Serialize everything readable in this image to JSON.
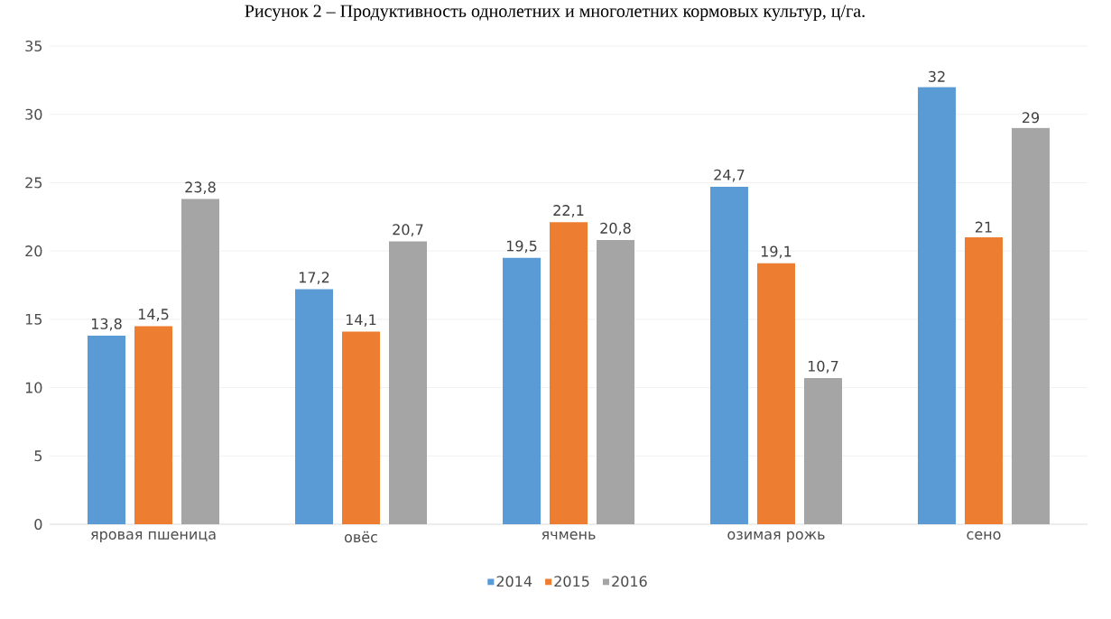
{
  "chart_data": {
    "type": "bar",
    "title": "Рисунок 2 – Продуктивность однолетних и многолетних кормовых культур, ц/га.",
    "categories": [
      "яровая пшеница",
      "овёс",
      "ячмень",
      "озимая рожь",
      "сено"
    ],
    "series": [
      {
        "name": "2014",
        "color": "#5b9bd5",
        "values": [
          13.8,
          17.2,
          19.5,
          24.7,
          32
        ],
        "value_labels": [
          "13,8",
          "17,2",
          "19,5",
          "24,7",
          "32"
        ]
      },
      {
        "name": "2015",
        "color": "#ed7d31",
        "values": [
          14.5,
          14.1,
          22.1,
          19.1,
          21
        ],
        "value_labels": [
          "14,5",
          "14,1",
          "22,1",
          "19,1",
          "21"
        ]
      },
      {
        "name": "2016",
        "color": "#a5a5a5",
        "values": [
          23.8,
          20.7,
          20.8,
          10.7,
          29
        ],
        "value_labels": [
          "23,8",
          "20,7",
          "20,8",
          "10,7",
          "29"
        ]
      }
    ],
    "ylim": [
      0,
      35
    ],
    "yticks": [
      0,
      5,
      10,
      15,
      20,
      25,
      30,
      35
    ],
    "grid": "y",
    "legend": "bottom"
  }
}
